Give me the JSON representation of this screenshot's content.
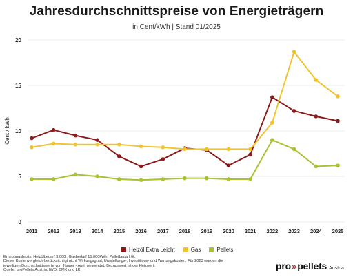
{
  "header": {
    "title": "Jahresdurchschnittspreise von Energieträgern",
    "subtitle": "in Cent/kWh | Stand 01/2025"
  },
  "chart_data": {
    "type": "line",
    "title": "Jahresdurchschnittspreise von Energieträgern",
    "subtitle": "in Cent/kWh | Stand 01/2025",
    "xlabel": "",
    "ylabel": "Cent / kWh",
    "x": [
      "2011",
      "2012",
      "2013",
      "2014",
      "2015",
      "2016",
      "2017",
      "2018",
      "2019",
      "2020",
      "2021",
      "2022",
      "2023",
      "2024",
      "2025"
    ],
    "yticks": [
      "0",
      "5",
      "10",
      "15",
      "20"
    ],
    "ylim": [
      0,
      20
    ],
    "grid": true,
    "legend": "bottom",
    "series": [
      {
        "name": "Heizöl Extra Leicht",
        "color": "#8b1a1a",
        "values": [
          9.2,
          10.1,
          9.5,
          9.0,
          7.2,
          6.1,
          6.9,
          8.1,
          7.9,
          6.2,
          7.4,
          13.7,
          12.2,
          11.6,
          11.1
        ]
      },
      {
        "name": "Gas",
        "color": "#f0c330",
        "values": [
          8.2,
          8.6,
          8.5,
          8.5,
          8.5,
          8.3,
          8.2,
          8.0,
          8.0,
          8.0,
          8.0,
          10.9,
          18.7,
          15.6,
          13.8
        ]
      },
      {
        "name": "Pellets",
        "color": "#a8c232",
        "values": [
          4.7,
          4.7,
          5.2,
          5.0,
          4.7,
          4.6,
          4.7,
          4.8,
          4.8,
          4.7,
          4.7,
          9.0,
          8.0,
          6.1,
          6.2
        ]
      }
    ]
  },
  "footnote": {
    "line1": "Erhebungsbasis: Heizölbedarf 3.000l, Gasbedarf 15.000kWh, Pelletbedarf 6t.",
    "line2": "Dieser Kostenvergleich berücksichtigt nicht Wirkungsgrad, Umstellungs-, Investitions- und Wartungskosten. Für 2023 wurden die",
    "line3": "jeweiligen Durchschnittswerte von Jänner - April verwendet. Bezugswert ist der Heizwert.",
    "line4": "Quelle: proPellets Austria, IWO, BMK und LK."
  },
  "logo": {
    "brand_left": "pro",
    "arrows": "»",
    "brand_right": "pellets",
    "country": "Austria"
  }
}
